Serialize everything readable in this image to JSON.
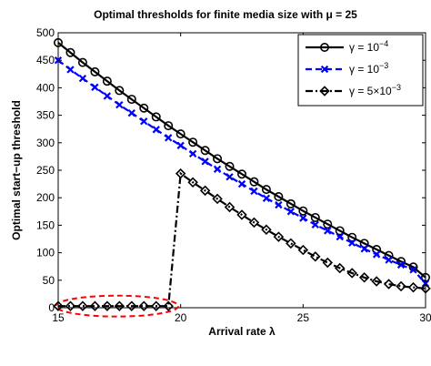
{
  "chart_data": {
    "type": "line",
    "title": "Optimal thresholds for finite media size with μ = 25",
    "xlabel": "Arrival rate λ",
    "ylabel": "Optimal start−up threshold",
    "xlim": [
      15,
      30
    ],
    "ylim": [
      0,
      500
    ],
    "xticks": [
      "15",
      "20",
      "25",
      "30"
    ],
    "yticks": [
      "0",
      "50",
      "100",
      "150",
      "200",
      "250",
      "300",
      "350",
      "400",
      "450",
      "500"
    ],
    "legend_position": "top-right",
    "x": [
      15.0,
      15.5,
      16.0,
      16.5,
      17.0,
      17.5,
      18.0,
      18.5,
      19.0,
      19.5,
      20.0,
      20.5,
      21.0,
      21.5,
      22.0,
      22.5,
      23.0,
      23.5,
      24.0,
      24.5,
      25.0,
      25.5,
      26.0,
      26.5,
      27.0,
      27.5,
      28.0,
      28.5,
      29.0,
      29.5,
      30.0
    ],
    "series": [
      {
        "name": "γ = 10⁻⁴",
        "label_base": "γ = 10",
        "label_exp": "−4",
        "color": "#000000",
        "marker": "circle",
        "dash": "solid",
        "values": [
          482,
          464,
          446,
          429,
          412,
          395,
          379,
          363,
          347,
          331,
          316,
          301,
          286,
          271,
          257,
          243,
          229,
          215,
          202,
          189,
          176,
          164,
          152,
          140,
          128,
          117,
          106,
          95,
          84,
          74,
          55
        ]
      },
      {
        "name": "γ = 10⁻³",
        "label_base": "γ = 10",
        "label_exp": "−3",
        "color": "#0000ff",
        "marker": "x",
        "dash": "dashed",
        "values": [
          450,
          433,
          417,
          401,
          385,
          369,
          354,
          339,
          324,
          309,
          295,
          280,
          266,
          252,
          238,
          225,
          212,
          199,
          187,
          175,
          163,
          151,
          140,
          129,
          118,
          107,
          97,
          87,
          78,
          69,
          44
        ]
      },
      {
        "name": "γ = 5×10⁻³",
        "label_base": "γ = 5×10",
        "label_exp": "−3",
        "color": "#000000",
        "marker": "diamond",
        "dash": "dashdot",
        "values": [
          3,
          3,
          3,
          3,
          3,
          3,
          3,
          3,
          3,
          3,
          244,
          228,
          213,
          198,
          183,
          169,
          155,
          142,
          129,
          117,
          105,
          93,
          82,
          72,
          63,
          55,
          48,
          43,
          39,
          37,
          35
        ]
      }
    ],
    "annotations": [
      {
        "type": "ellipse",
        "color": "#ff0000",
        "dash": "dashed",
        "cx": 17.4,
        "cy": 3,
        "rx": 2.5,
        "ry": 19
      }
    ]
  }
}
